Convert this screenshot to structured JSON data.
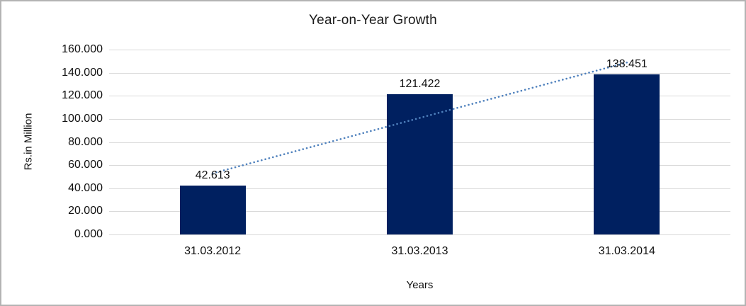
{
  "window": {
    "background": "#ffffff",
    "border_color": "#b3b3b3"
  },
  "chart_data": {
    "type": "bar",
    "title": "Year-on-Year Growth",
    "xlabel": "Years",
    "ylabel": "Rs.in Million",
    "categories": [
      "31.03.2012",
      "31.03.2013",
      "31.03.2014"
    ],
    "values": [
      42.613,
      121.422,
      138.451
    ],
    "data_labels": [
      "42.613",
      "121.422",
      "138.451"
    ],
    "y_ticks": [
      "0.000",
      "20.000",
      "40.000",
      "60.000",
      "80.000",
      "100.000",
      "120.000",
      "140.000",
      "160.000"
    ],
    "ylim": [
      0,
      160
    ],
    "grid": true,
    "legend": "none",
    "bar_color": "#002060",
    "gridline_color": "#d9d9d9",
    "trendline": {
      "style": "dotted",
      "color": "#4f81bd",
      "from_value": 52.9,
      "to_value": 148.8
    }
  }
}
